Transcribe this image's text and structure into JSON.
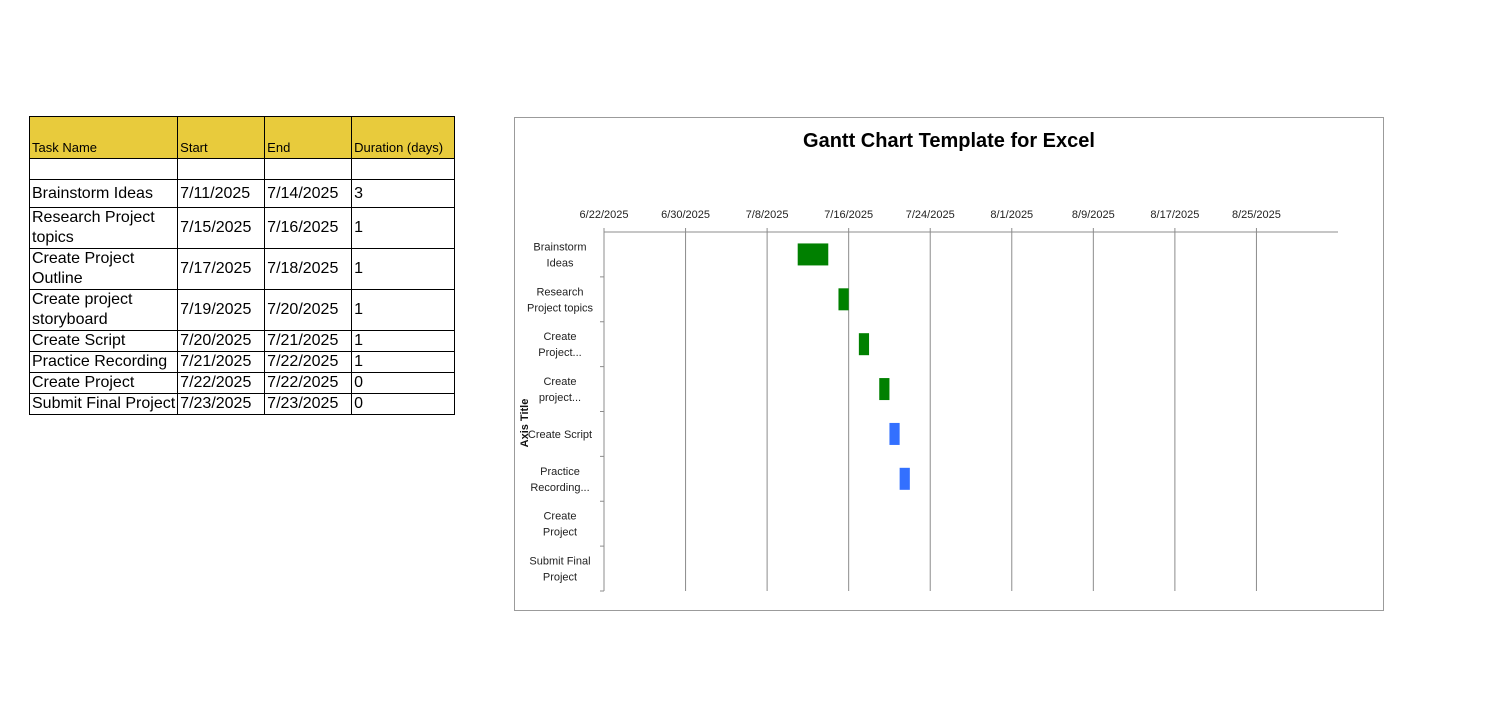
{
  "table": {
    "headers": {
      "task": "Task Name",
      "start": "Start",
      "end": "End",
      "duration": "Duration (days)"
    },
    "rows": [
      {
        "task": "Brainstorm Ideas",
        "start": "7/11/2025",
        "end": "7/14/2025",
        "duration": "3"
      },
      {
        "task": "Research Project topics",
        "start": "7/15/2025",
        "end": "7/16/2025",
        "duration": "1"
      },
      {
        "task": "Create Project Outline",
        "start": "7/17/2025",
        "end": "7/18/2025",
        "duration": "1"
      },
      {
        "task": "Create project storyboard",
        "start": "7/19/2025",
        "end": "7/20/2025",
        "duration": "1"
      },
      {
        "task": "Create Script",
        "start": "7/20/2025",
        "end": "7/21/2025",
        "duration": "1"
      },
      {
        "task": "Practice Recording",
        "start": "7/21/2025",
        "end": "7/22/2025",
        "duration": "1"
      },
      {
        "task": "Create Project",
        "start": "7/22/2025",
        "end": "7/22/2025",
        "duration": "0"
      },
      {
        "task": "Submit Final Project",
        "start": "7/23/2025",
        "end": "7/23/2025",
        "duration": "0"
      }
    ]
  },
  "chart_data": {
    "type": "bar",
    "orientation": "horizontal-gantt",
    "title": "Gantt Chart Template for Excel",
    "ylabel": "Axis Title",
    "xlabel": "",
    "x_ticks": [
      "6/22/2025",
      "6/30/2025",
      "7/8/2025",
      "7/16/2025",
      "7/24/2025",
      "8/1/2025",
      "8/9/2025",
      "8/17/2025",
      "8/25/2025"
    ],
    "xlim": [
      "6/22/2025",
      "9/2/2025"
    ],
    "x_axis_position": "top",
    "grid": "vertical",
    "categories": [
      "Brainstorm Ideas",
      "Research Project topics",
      "Create Project...",
      "Create project...",
      "Create Script",
      "Practice Recording...",
      "Create Project",
      "Submit Final Project"
    ],
    "series": [
      {
        "start": [
          "7/11/2025",
          "7/15/2025",
          "7/17/2025",
          "7/19/2025",
          "7/20/2025",
          "7/21/2025",
          "7/22/2025",
          "7/23/2025"
        ],
        "duration_days": [
          3,
          1,
          1,
          1,
          1,
          1,
          0,
          0
        ],
        "colors": [
          "#008000",
          "#008000",
          "#008000",
          "#008000",
          "#3370ff",
          "#3370ff",
          "#3370ff",
          "#3370ff"
        ]
      }
    ]
  },
  "colors": {
    "header_fill": "#e8cb3c",
    "bar_green": "#008000",
    "bar_blue": "#3370ff",
    "gridline": "#8c8c8c"
  }
}
